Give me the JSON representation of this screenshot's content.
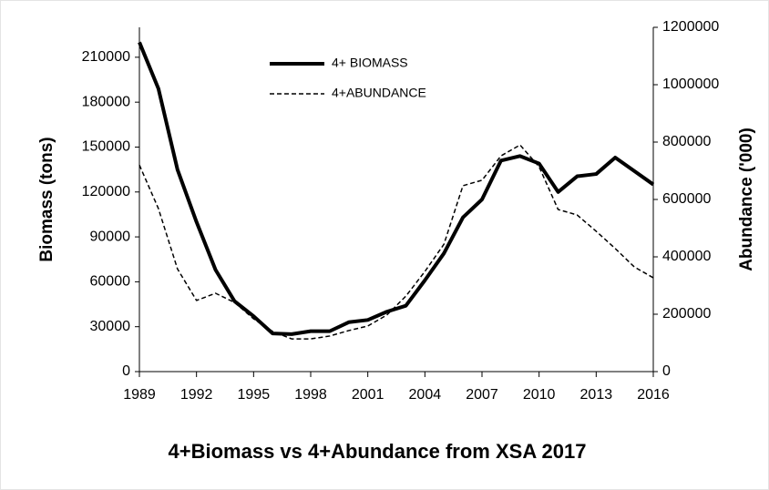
{
  "chart_data": {
    "type": "line",
    "title": "4+Biomass vs 4+Abundance from XSA 2017",
    "y_label": "Biomass (tons)",
    "y2_label": "Abundance ('000)",
    "x": [
      1989,
      1990,
      1991,
      1992,
      1993,
      1994,
      1995,
      1996,
      1997,
      1998,
      1999,
      2000,
      2001,
      2002,
      2003,
      2004,
      2005,
      2006,
      2007,
      2008,
      2009,
      2010,
      2011,
      2012,
      2013,
      2014,
      2015,
      2016
    ],
    "xlim": [
      1989,
      2016
    ],
    "xticks": [
      1989,
      1992,
      1995,
      1998,
      2001,
      2004,
      2007,
      2010,
      2013,
      2016
    ],
    "ylim": [
      0,
      230000
    ],
    "yticks": [
      0,
      30000,
      60000,
      90000,
      120000,
      150000,
      180000,
      210000
    ],
    "y2lim": [
      0,
      1200000
    ],
    "y2ticks": [
      0,
      200000,
      400000,
      600000,
      800000,
      1000000,
      1200000
    ],
    "grid": false,
    "legend": "top-left",
    "series": [
      {
        "name": "4+ BIOMASS",
        "color": "#000000",
        "dash": "solid",
        "axis": "y",
        "values": [
          220000,
          189000,
          135000,
          100000,
          68000,
          47000,
          37000,
          25500,
          25000,
          27000,
          27000,
          33000,
          34500,
          40000,
          44000,
          61000,
          79000,
          103000,
          115000,
          141000,
          144000,
          139000,
          120000,
          130500,
          132000,
          143000,
          134000,
          125000
        ]
      },
      {
        "name": "4+ABUNDANCE",
        "color": "#000000",
        "dash": "dashed",
        "axis": "y2",
        "values": [
          720000,
          568000,
          358000,
          248000,
          273000,
          241000,
          184000,
          140000,
          114000,
          114000,
          124000,
          143000,
          159000,
          197000,
          263000,
          349000,
          444000,
          648000,
          667000,
          752000,
          790000,
          714000,
          565000,
          546000,
          489000,
          429000,
          365000,
          327000
        ]
      }
    ]
  }
}
